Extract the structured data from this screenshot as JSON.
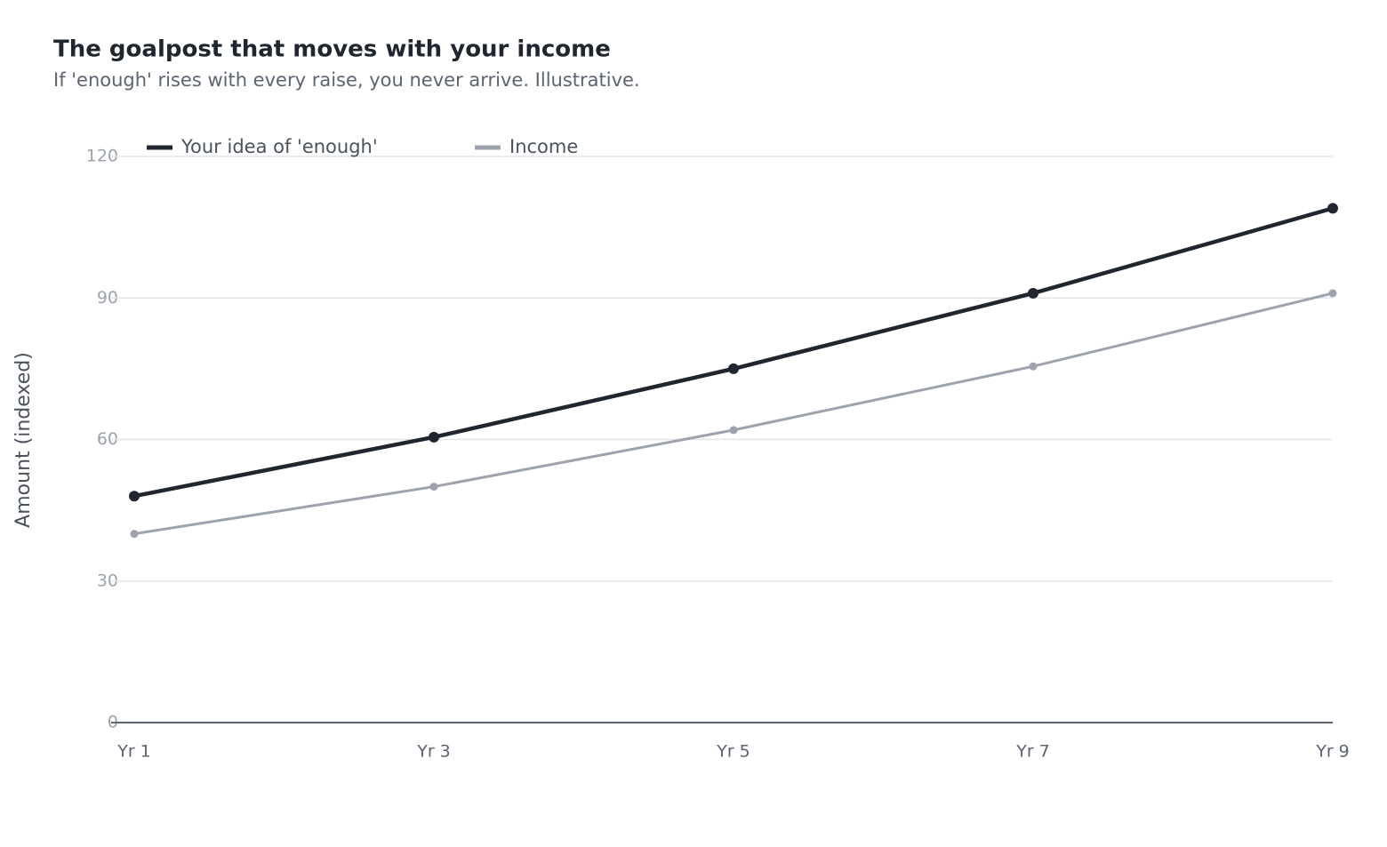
{
  "chart_data": {
    "type": "line",
    "title": "The goalpost that moves with your income",
    "subtitle": "If 'enough' rises with every raise, you never arrive. Illustrative.",
    "y_label": "Amount (indexed)",
    "categories": [
      "Yr 1",
      "Yr 3",
      "Yr 5",
      "Yr 7",
      "Yr 9"
    ],
    "series": [
      {
        "name": "Your idea of 'enough'",
        "color": "#1f2630",
        "values": [
          48,
          60.5,
          75,
          91,
          109
        ]
      },
      {
        "name": "Income",
        "color": "#9ca3ad",
        "values": [
          40,
          50,
          62,
          75.5,
          91
        ]
      }
    ],
    "ylim": [
      0,
      120
    ],
    "yticks": [
      0,
      30,
      60,
      90,
      120
    ],
    "grid": true
  }
}
